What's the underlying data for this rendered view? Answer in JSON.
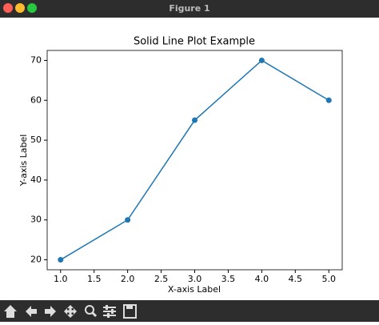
{
  "window_title": "Figure 1",
  "chart_data": {
    "type": "line",
    "title": "Solid Line Plot Example",
    "x_label": "X-axis Label",
    "y_label": "Y-axis Label",
    "x": [
      1,
      2,
      3,
      4,
      5
    ],
    "series": [
      {
        "color": "#1f77b4",
        "values": [
          20,
          30,
          55,
          70,
          60
        ]
      }
    ],
    "markers": true,
    "xlim": [
      0.8,
      5.2
    ],
    "ylim": [
      17.5,
      72.5
    ],
    "xticks": [
      {
        "value": 1,
        "label": "1.0"
      },
      1.5,
      {
        "value": 2,
        "label": "2.0"
      },
      2.5,
      {
        "value": 3,
        "label": "3.0"
      },
      3.5,
      {
        "value": 4,
        "label": "4.0"
      },
      4.5,
      {
        "value": 5,
        "label": "5.0"
      }
    ],
    "yticks": [
      20,
      30,
      40,
      50,
      60,
      70
    ],
    "grid": false
  }
}
